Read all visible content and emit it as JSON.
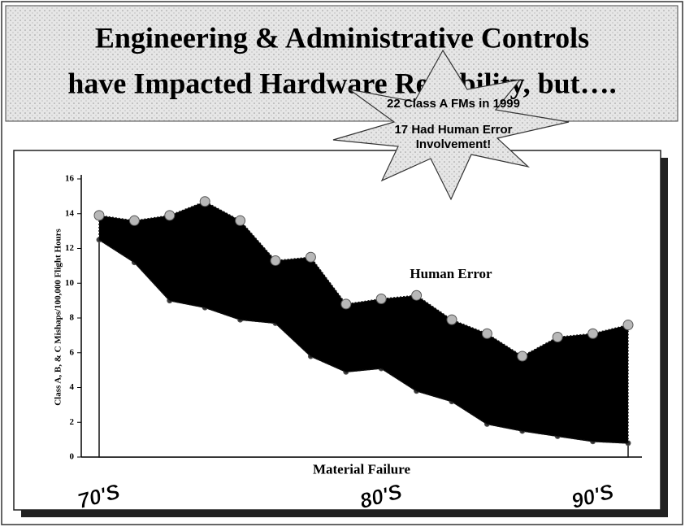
{
  "chart_data": {
    "type": "area",
    "stacked": true,
    "title": [
      "Engineering & Administrative Controls",
      "have Impacted Hardware Reliability, but…."
    ],
    "y_label": "Class A, B, & C Mishaps/100,000 Flight Hours",
    "annotations": [
      "22 Class A FMs in 1999",
      "17 Had Human Error",
      "Involvement!"
    ],
    "categories": [
      "70'S",
      null,
      null,
      null,
      null,
      null,
      null,
      null,
      "80'S",
      null,
      null,
      null,
      null,
      null,
      "90'S",
      null
    ],
    "series": [
      {
        "name": "Material Failure",
        "color": "#ffffff",
        "values": [
          12.5,
          11.2,
          9.0,
          8.6,
          7.9,
          7.7,
          5.8,
          4.9,
          5.1,
          3.8,
          3.2,
          1.9,
          1.5,
          1.2,
          0.9,
          0.8
        ]
      },
      {
        "name": "Human Error",
        "color": "#000000",
        "values": [
          1.4,
          2.4,
          4.9,
          6.1,
          5.7,
          3.6,
          5.7,
          3.9,
          4.0,
          5.5,
          4.7,
          5.2,
          4.3,
          5.7,
          6.2,
          6.8
        ]
      }
    ],
    "ylim": [
      0,
      16
    ],
    "yticks": [
      0,
      2,
      4,
      6,
      8,
      10,
      12,
      14,
      16
    ],
    "marker_color": "#b8b8b8"
  }
}
